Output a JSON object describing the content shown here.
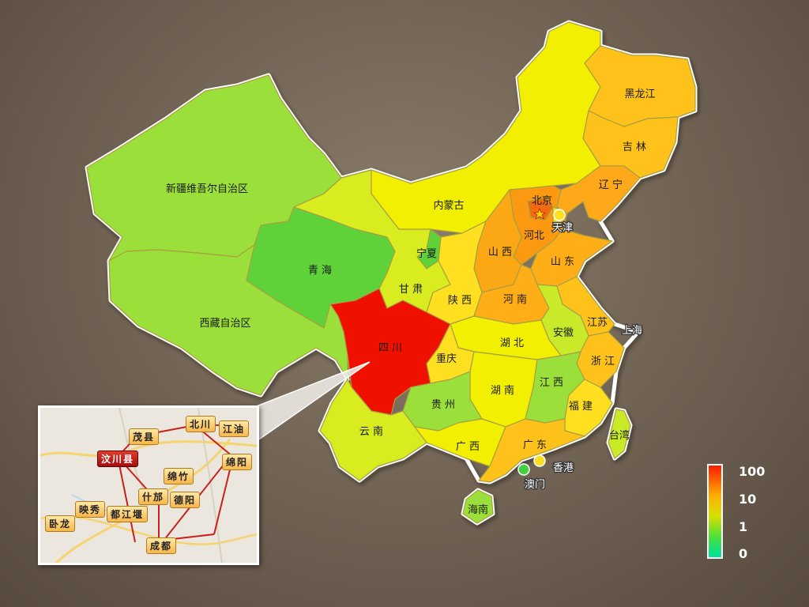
{
  "map": {
    "provinces": {
      "xinjiang": "新疆维吾尔自治区",
      "xizang": "西藏自治区",
      "qinghai": "青 海",
      "gansu": "甘 肃",
      "neimenggu": "内蒙古",
      "ningxia": "宁夏",
      "heilongjiang": "黑龙江",
      "jilin": "吉 林",
      "liaoning": "辽 宁",
      "beijing": "北京",
      "tianjin": "天津",
      "hebei": "河北",
      "shanxi": "山 西",
      "shandong": "山 东",
      "shaanxi": "陕 西",
      "henan": "河 南",
      "jiangsu": "江苏",
      "shanghai": "上海",
      "anhui": "安徽",
      "hubei": "湖 北",
      "zhejiang": "浙 江",
      "sichuan": "四 川",
      "chongqing": "重庆",
      "hunan": "湖 南",
      "jiangxi": "江 西",
      "fujian": "福 建",
      "taiwan": "台湾",
      "guizhou": "贵 州",
      "yunnan": "云 南",
      "guangxi": "广 西",
      "guangdong": "广 东",
      "hongkong": "香港",
      "macau": "澳门",
      "hainan": "海南"
    },
    "colors": {
      "xinjiang": "#9be03a",
      "xizang": "#9be03a",
      "qinghai": "#5fd23a",
      "gansu": "#d8ec20",
      "neimenggu": "#f2f000",
      "ningxia": "#5fd23a",
      "heilongjiang": "#ffc21a",
      "jilin": "#ffc21a",
      "liaoning": "#ffa81a",
      "beijing": "#f06a10",
      "tianjin": "#ffe020",
      "hebei": "#fb9a10",
      "shanxi": "#fba814",
      "shandong": "#ffae18",
      "shaanxi": "#ffe020",
      "henan": "#ffae18",
      "jiangsu": "#ffc21a",
      "anhui": "#c8ea28",
      "hubei": "#f2f000",
      "zhejiang": "#ffc21a",
      "sichuan": "#f01000",
      "chongqing": "#ffe020",
      "hunan": "#f2f000",
      "jiangxi": "#9be03a",
      "fujian": "#ffe020",
      "taiwan": "#c8ea28",
      "guizhou": "#9be03a",
      "yunnan": "#d8ec20",
      "guangxi": "#f2f000",
      "guangdong": "#ffc21a",
      "hainan": "#9be03a",
      "hongkong_dot": "#ffe020",
      "macau_dot": "#40d040"
    }
  },
  "inset": {
    "places": {
      "wenchuan": "汶川县",
      "maoxian": "茂县",
      "beichuan": "北川",
      "jiangyou": "江油",
      "mianyang": "绵阳",
      "mianzhu": "绵竹",
      "shifang": "什邡",
      "deyang": "德阳",
      "yingxiu": "映秀",
      "dujiangyan": "都江堰",
      "wolong": "卧龙",
      "chengdu": "成都"
    }
  },
  "legend": {
    "ticks": [
      "100",
      "10",
      "1",
      "0"
    ]
  }
}
